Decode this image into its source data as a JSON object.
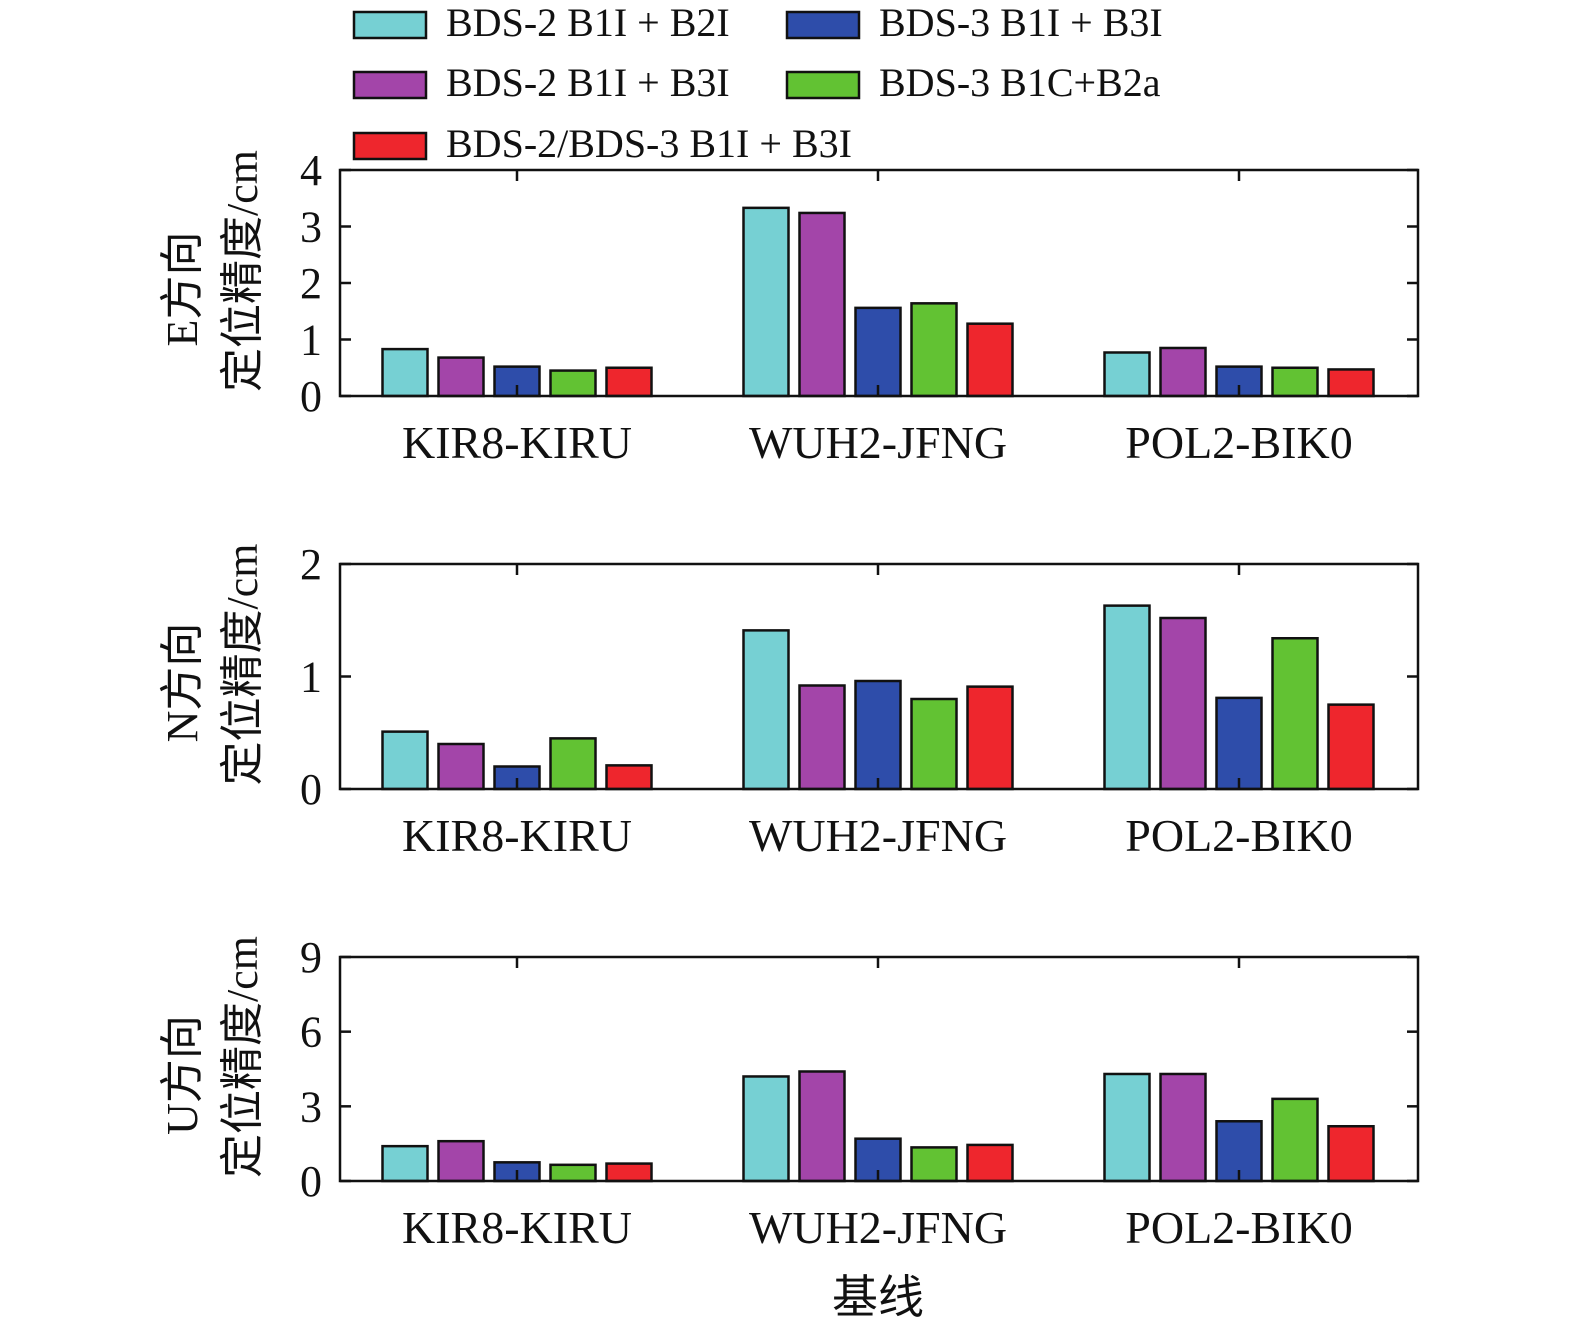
{
  "legend": [
    {
      "name": "BDS-2 B1I + B2I",
      "color": "#76D0D3"
    },
    {
      "name": "BDS-3 B1I + B3I",
      "color": "#2E4DAA"
    },
    {
      "name": "BDS-2 B1I + B3I",
      "color": "#A345A9"
    },
    {
      "name": "BDS-3 B1C+B2a",
      "color": "#62C233"
    },
    {
      "name": "BDS-2/BDS-3 B1I + B3I",
      "color": "#EE262D"
    }
  ],
  "chart_data": [
    {
      "type": "bar",
      "ylabel_line1": "E方向",
      "ylabel_line2": "定位精度/cm",
      "xlabel": "",
      "ylim": [
        0,
        4
      ],
      "yticks": [
        "0",
        "1",
        "2",
        "3",
        "4"
      ],
      "categories": [
        "KIR8-KIRU",
        "WUH2-JFNG",
        "POL2-BIK0"
      ],
      "series": [
        {
          "name": "BDS-2 B1I + B2I",
          "values": [
            0.83,
            3.33,
            0.77
          ]
        },
        {
          "name": "BDS-2 B1I + B3I",
          "values": [
            0.68,
            3.24,
            0.85
          ]
        },
        {
          "name": "BDS-3 B1I + B3I",
          "values": [
            0.52,
            1.56,
            0.52
          ]
        },
        {
          "name": "BDS-3 B1C+B2a",
          "values": [
            0.45,
            1.64,
            0.5
          ]
        },
        {
          "name": "BDS-2/BDS-3 B1I + B3I",
          "values": [
            0.5,
            1.28,
            0.47
          ]
        }
      ]
    },
    {
      "type": "bar",
      "ylabel_line1": "N方向",
      "ylabel_line2": "定位精度/cm",
      "xlabel": "",
      "ylim": [
        0,
        2
      ],
      "yticks": [
        "0",
        "1",
        "2"
      ],
      "categories": [
        "KIR8-KIRU",
        "WUH2-JFNG",
        "POL2-BIK0"
      ],
      "series": [
        {
          "name": "BDS-2 B1I + B2I",
          "values": [
            0.51,
            1.41,
            1.63
          ]
        },
        {
          "name": "BDS-2 B1I + B3I",
          "values": [
            0.4,
            0.92,
            1.52
          ]
        },
        {
          "name": "BDS-3 B1I + B3I",
          "values": [
            0.2,
            0.96,
            0.81
          ]
        },
        {
          "name": "BDS-3 B1C+B2a",
          "values": [
            0.45,
            0.8,
            1.34
          ]
        },
        {
          "name": "BDS-2/BDS-3 B1I + B3I",
          "values": [
            0.21,
            0.91,
            0.75
          ]
        }
      ]
    },
    {
      "type": "bar",
      "ylabel_line1": "U方向",
      "ylabel_line2": "定位精度/cm",
      "xlabel": "基线",
      "ylim": [
        0,
        9
      ],
      "yticks": [
        "0",
        "3",
        "6",
        "9"
      ],
      "categories": [
        "KIR8-KIRU",
        "WUH2-JFNG",
        "POL2-BIK0"
      ],
      "series": [
        {
          "name": "BDS-2 B1I + B2I",
          "values": [
            1.4,
            4.2,
            4.3
          ]
        },
        {
          "name": "BDS-2 B1I + B3I",
          "values": [
            1.6,
            4.4,
            4.3
          ]
        },
        {
          "name": "BDS-3 B1I + B3I",
          "values": [
            0.75,
            1.7,
            2.4
          ]
        },
        {
          "name": "BDS-3 B1C+B2a",
          "values": [
            0.65,
            1.35,
            3.3
          ]
        },
        {
          "name": "BDS-2/BDS-3 B1I + B3I",
          "values": [
            0.7,
            1.45,
            2.2
          ]
        }
      ]
    }
  ]
}
